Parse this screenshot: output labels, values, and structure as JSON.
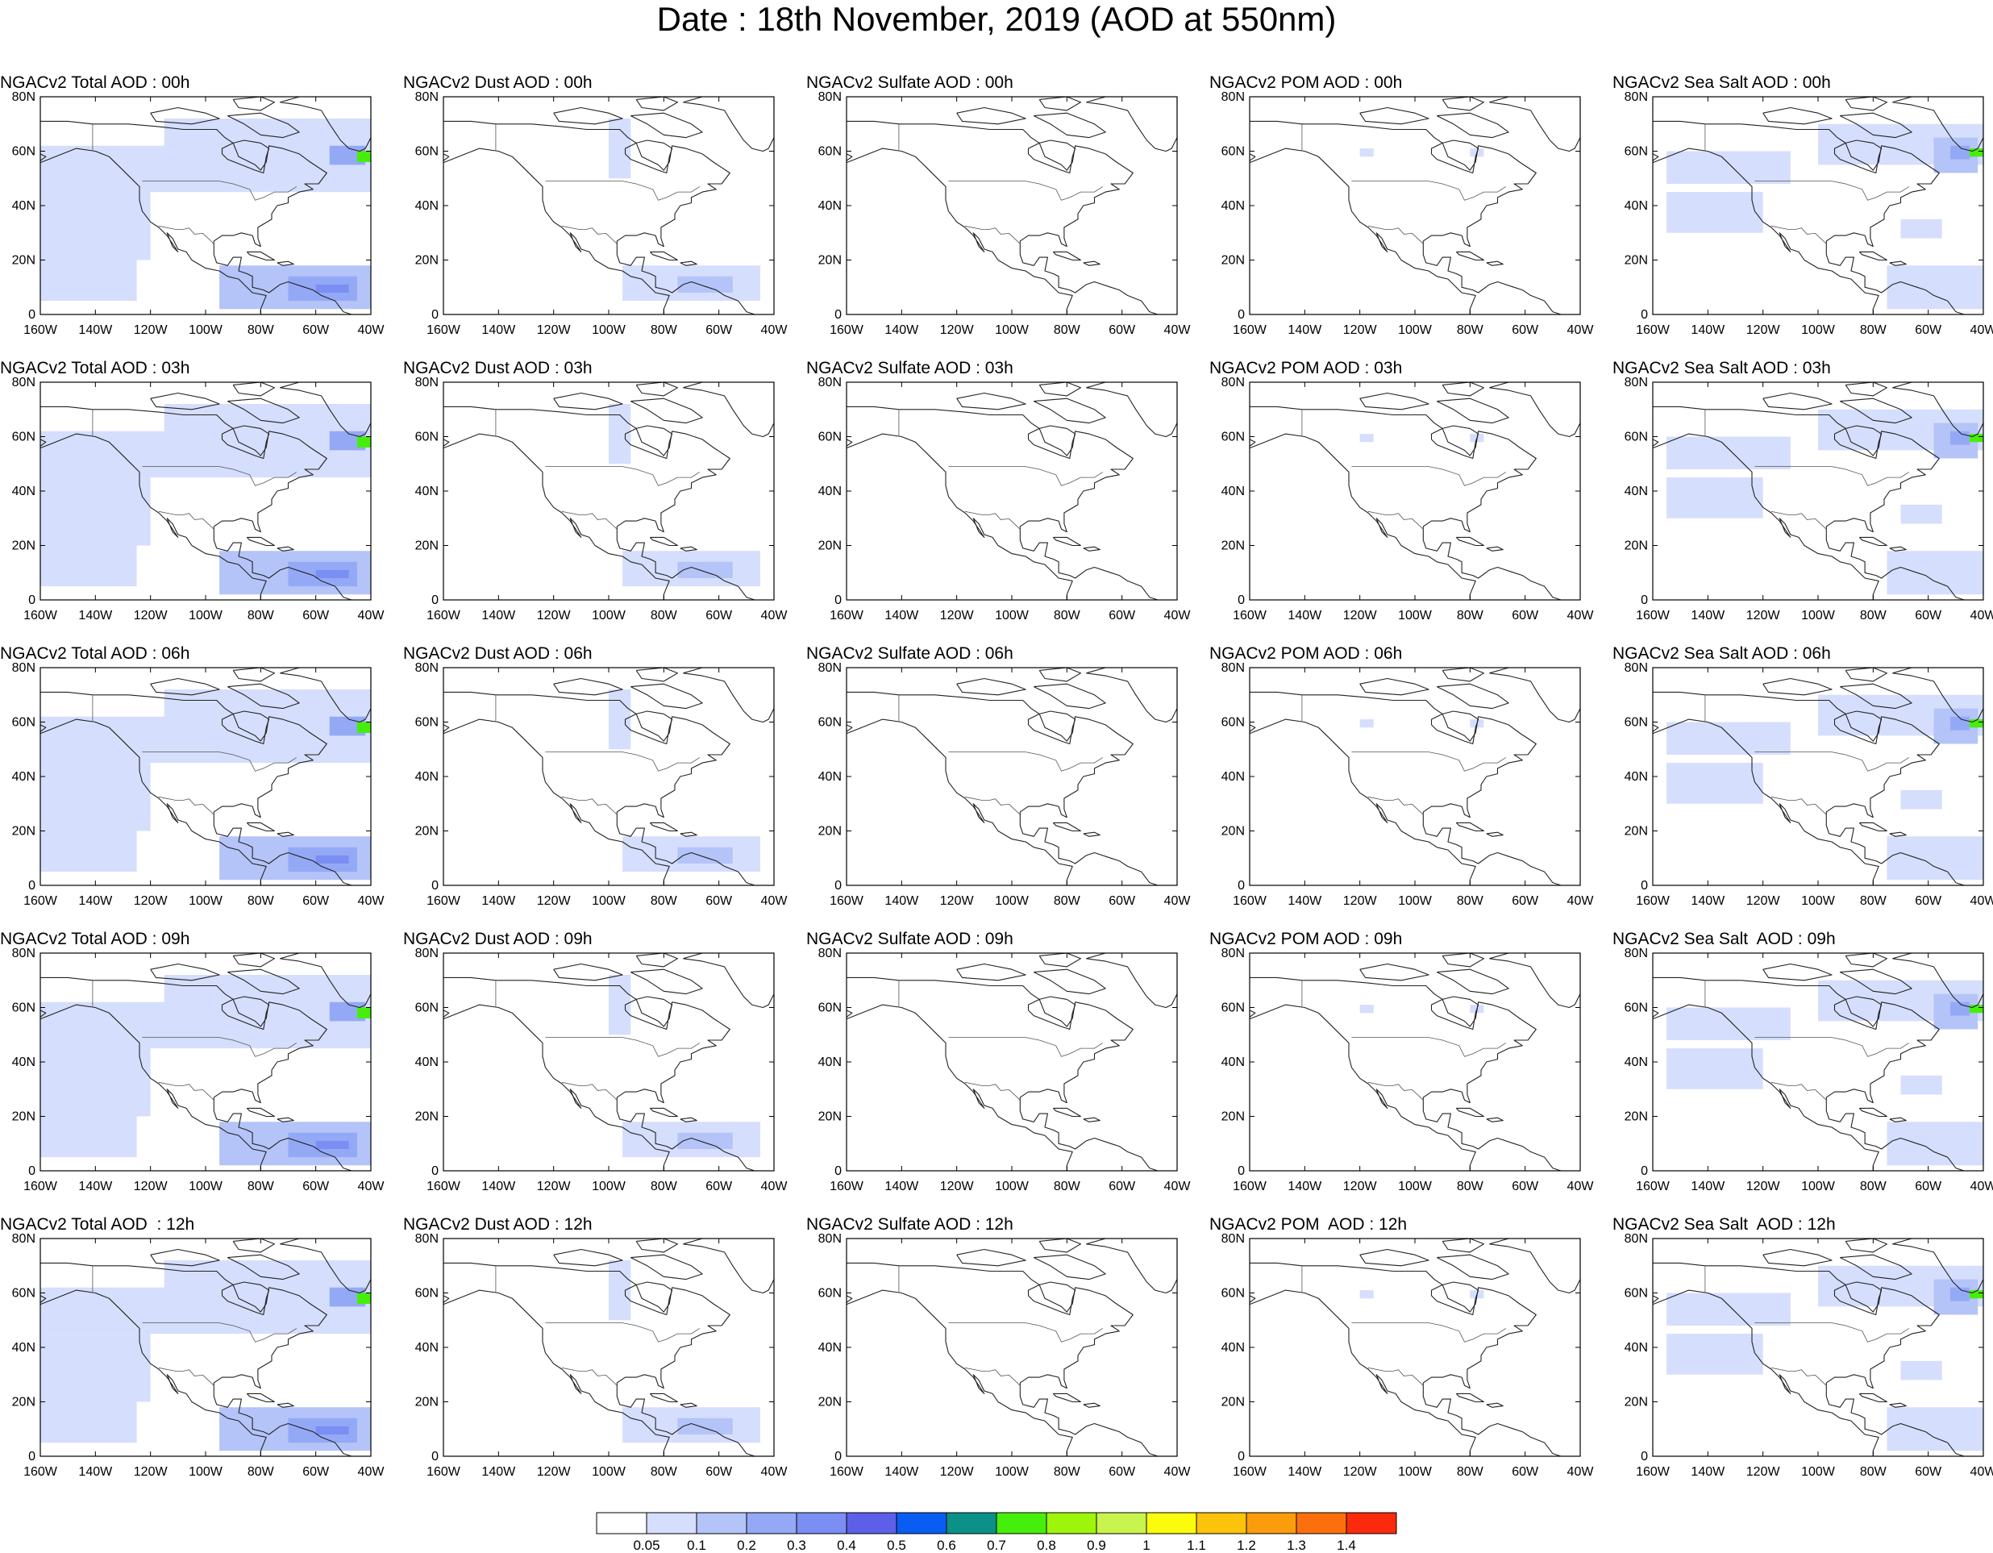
{
  "title": "Date : 18th November, 2019 (AOD at 550nm)",
  "lon_ticks": [
    "160W",
    "140W",
    "120W",
    "100W",
    "80W",
    "60W",
    "40W"
  ],
  "lat_ticks": [
    "0",
    "20N",
    "40N",
    "60N",
    "80N"
  ],
  "map_extent": {
    "lon": [
      -160,
      -40
    ],
    "lat": [
      0,
      80
    ]
  },
  "panels": [
    [
      {
        "title": "NGACv2 Total AOD : 00h",
        "field": "total"
      },
      {
        "title": "NGACv2 Dust AOD : 00h",
        "field": "dust"
      },
      {
        "title": "NGACv2 Sulfate AOD : 00h",
        "field": "sulfate"
      },
      {
        "title": "NGACv2 POM AOD : 00h",
        "field": "pom"
      },
      {
        "title": "NGACv2 Sea Salt AOD : 00h",
        "field": "seasalt"
      }
    ],
    [
      {
        "title": "NGACv2 Total AOD : 03h",
        "field": "total"
      },
      {
        "title": "NGACv2 Dust AOD : 03h",
        "field": "dust"
      },
      {
        "title": "NGACv2 Sulfate AOD : 03h",
        "field": "sulfate"
      },
      {
        "title": "NGACv2 POM AOD : 03h",
        "field": "pom"
      },
      {
        "title": "NGACv2 Sea Salt AOD : 03h",
        "field": "seasalt"
      }
    ],
    [
      {
        "title": "NGACv2 Total AOD : 06h",
        "field": "total"
      },
      {
        "title": "NGACv2 Dust AOD : 06h",
        "field": "dust"
      },
      {
        "title": "NGACv2 Sulfate AOD : 06h",
        "field": "sulfate"
      },
      {
        "title": "NGACv2 POM AOD : 06h",
        "field": "pom"
      },
      {
        "title": "NGACv2 Sea Salt AOD : 06h",
        "field": "seasalt"
      }
    ],
    [
      {
        "title": "NGACv2 Total AOD : 09h",
        "field": "total"
      },
      {
        "title": "NGACv2 Dust AOD : 09h",
        "field": "dust"
      },
      {
        "title": "NGACv2 Sulfate AOD : 09h",
        "field": "sulfate"
      },
      {
        "title": "NGACv2 POM AOD : 09h",
        "field": "pom"
      },
      {
        "title": "NGACv2 Sea Salt  AOD : 09h",
        "field": "seasalt"
      }
    ],
    [
      {
        "title": "NGACv2 Total AOD  : 12h",
        "field": "total"
      },
      {
        "title": "NGACv2 Dust AOD : 12h",
        "field": "dust"
      },
      {
        "title": "NGACv2 Sulfate AOD : 12h",
        "field": "sulfate"
      },
      {
        "title": "NGACv2 POM  AOD : 12h",
        "field": "pom"
      },
      {
        "title": "NGACv2 Sea Salt  AOD : 12h",
        "field": "seasalt"
      }
    ]
  ],
  "colorbar": {
    "labels": [
      "0.05",
      "0.1",
      "0.2",
      "0.3",
      "0.4",
      "0.5",
      "0.6",
      "0.7",
      "0.8",
      "0.9",
      "1",
      "1.1",
      "1.2",
      "1.3",
      "1.4"
    ],
    "colors": [
      "#ffffff",
      "#d5defc",
      "#b4c4f8",
      "#94a9f6",
      "#7a8ef4",
      "#5d5fe8",
      "#0a5df2",
      "#0b9188",
      "#46ee0b",
      "#9ef50c",
      "#c8f44d",
      "#fbfb0c",
      "#fcc20c",
      "#fb9c0c",
      "#fb700c",
      "#fb2a0c"
    ]
  }
}
